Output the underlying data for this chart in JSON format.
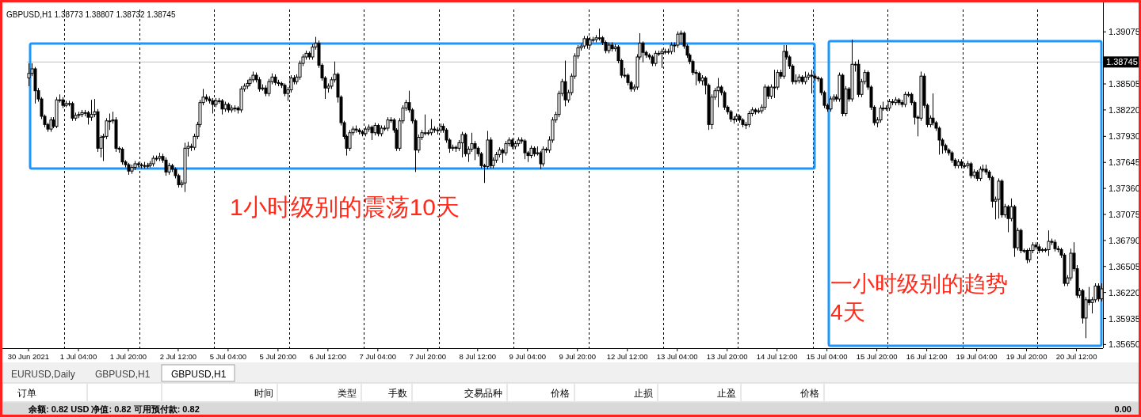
{
  "chart_data": {
    "type": "candlestick",
    "title": "GBPUSD,H1  1.38773 1.38807 1.38732 1.38745",
    "color": "#000000",
    "categories": [
      "30 Jun 2021",
      null,
      null,
      null,
      null,
      null,
      null,
      null,
      null,
      null,
      null,
      null,
      null,
      null,
      null,
      null,
      "1 Jul 04:00",
      null,
      null,
      null,
      null,
      null,
      null,
      null,
      null,
      null,
      null,
      null,
      null,
      null,
      null,
      null,
      "1 Jul 20:00",
      null,
      null,
      null,
      null,
      null,
      null,
      null,
      null,
      null,
      null,
      null,
      null,
      null,
      null,
      null,
      "2 Jul 12:00",
      null,
      null,
      null,
      null,
      null,
      null,
      null,
      null,
      null,
      null,
      null,
      null,
      null,
      null,
      null,
      "5 Jul 04:00",
      null,
      null,
      null,
      null,
      null,
      null,
      null,
      null,
      null,
      null,
      null,
      null,
      null,
      null,
      null,
      "5 Jul 20:00",
      null,
      null,
      null,
      null,
      null,
      null,
      null,
      null,
      null,
      null,
      null,
      null,
      null,
      null,
      null,
      "6 Jul 12:00",
      null,
      null,
      null,
      null,
      null,
      null,
      null,
      null,
      null,
      null,
      null,
      null,
      null,
      null,
      null,
      "7 Jul 04:00",
      null,
      null,
      null,
      null,
      null,
      null,
      null,
      null,
      null,
      null,
      null,
      null,
      null,
      null,
      null,
      "7 Jul 20:00",
      null,
      null,
      null,
      null,
      null,
      null,
      null,
      null,
      null,
      null,
      null,
      null,
      null,
      null,
      null,
      "8 Jul 12:00",
      null,
      null,
      null,
      null,
      null,
      null,
      null,
      null,
      null,
      null,
      null,
      null,
      null,
      null,
      null,
      "9 Jul 04:00",
      null,
      null,
      null,
      null,
      null,
      null,
      null,
      null,
      null,
      null,
      null,
      null,
      null,
      null,
      null,
      "9 Jul 20:00",
      null,
      null,
      null,
      null,
      null,
      null,
      null,
      null,
      null,
      null,
      null,
      null,
      null,
      null,
      null,
      "12 Jul 12:00",
      null,
      null,
      null,
      null,
      null,
      null,
      null,
      null,
      null,
      null,
      null,
      null,
      null,
      null,
      null,
      "13 Jul 04:00",
      null,
      null,
      null,
      null,
      null,
      null,
      null,
      null,
      null,
      null,
      null,
      null,
      null,
      null,
      null,
      "13 Jul 20:00",
      null,
      null,
      null,
      null,
      null,
      null,
      null,
      null,
      null,
      null,
      null,
      null,
      null,
      null,
      null,
      "14 Jul 12:00",
      null,
      null,
      null,
      null,
      null,
      null,
      null,
      null,
      null,
      null,
      null,
      null,
      null,
      null,
      null,
      "15 Jul 04:00",
      null,
      null,
      null,
      null,
      null,
      null,
      null,
      null,
      null,
      null,
      null,
      null,
      null,
      null,
      null,
      "15 Jul 20:00",
      null,
      null,
      null,
      null,
      null,
      null,
      null,
      null,
      null,
      null,
      null,
      null,
      null,
      null,
      null,
      "16 Jul 12:00",
      null,
      null,
      null,
      null,
      null,
      null,
      null,
      null,
      null,
      null,
      null,
      null,
      null,
      null,
      null,
      "19 Jul 04:00",
      null,
      null,
      null,
      null,
      null,
      null,
      null,
      null,
      null,
      null,
      null,
      null,
      null,
      null,
      null,
      "19 Jul 20:00",
      null,
      null,
      null,
      null,
      null,
      null,
      null,
      null,
      null,
      null,
      null,
      null,
      null,
      null,
      null,
      "20 Jul 12:00",
      null,
      null,
      null,
      null,
      null,
      null,
      null,
      null
    ],
    "ohlc": [
      [
        1.3857,
        1.3873,
        1.3848,
        1.3862
      ],
      [
        1.3862,
        1.3873,
        1.3859,
        1.3867
      ],
      [
        1.3867,
        1.3869,
        1.3829,
        1.3843
      ],
      [
        1.3843,
        1.3846,
        1.3831,
        1.3834
      ],
      [
        1.3834,
        1.3836,
        1.3812,
        1.3815
      ],
      [
        1.3815,
        1.3817,
        1.3803,
        1.3806
      ],
      [
        1.3806,
        1.3808,
        1.3798,
        1.3801
      ],
      [
        1.3801,
        1.3814,
        1.3798,
        1.3811
      ],
      [
        1.3811,
        1.3814,
        1.3802,
        1.3804
      ],
      [
        1.3804,
        1.3836,
        1.3802,
        1.3833
      ],
      [
        1.3833,
        1.3839,
        1.383,
        1.3833
      ],
      [
        1.3833,
        1.3836,
        1.3824,
        1.3827
      ],
      [
        1.3827,
        1.3832,
        1.3825,
        1.3829
      ],
      [
        1.3829,
        1.3832,
        1.3826,
        1.3829
      ],
      [
        1.3829,
        1.3831,
        1.381,
        1.3813
      ],
      [
        1.3813,
        1.3819,
        1.381,
        1.3816
      ],
      [
        1.3816,
        1.382,
        1.3813,
        1.3817
      ],
      [
        1.3817,
        1.3822,
        1.3814,
        1.3819
      ],
      [
        1.3819,
        1.3822,
        1.3815,
        1.3819
      ],
      [
        1.3819,
        1.3821,
        1.3806,
        1.3814
      ],
      [
        1.3814,
        1.3833,
        1.381,
        1.3817
      ],
      [
        1.3817,
        1.3834,
        1.3814,
        1.382
      ],
      [
        1.382,
        1.3823,
        1.3776,
        1.378
      ],
      [
        1.378,
        1.3794,
        1.377,
        1.3792
      ],
      [
        1.3792,
        1.3796,
        1.3766,
        1.3793
      ],
      [
        1.3793,
        1.3813,
        1.379,
        1.381
      ],
      [
        1.381,
        1.3818,
        1.38,
        1.381
      ],
      [
        1.381,
        1.382,
        1.3807,
        1.3811
      ],
      [
        1.3811,
        1.3814,
        1.3776,
        1.378
      ],
      [
        1.378,
        1.3782,
        1.3775,
        1.3779
      ],
      [
        1.3779,
        1.3781,
        1.3762,
        1.3765
      ],
      [
        1.3765,
        1.3767,
        1.3759,
        1.3762
      ],
      [
        1.3762,
        1.3764,
        1.3751,
        1.3755
      ],
      [
        1.3755,
        1.3762,
        1.3752,
        1.3759
      ],
      [
        1.3759,
        1.3766,
        1.3756,
        1.3763
      ],
      [
        1.3763,
        1.3765,
        1.3759,
        1.3762
      ],
      [
        1.3762,
        1.3764,
        1.3758,
        1.3761
      ],
      [
        1.3761,
        1.3765,
        1.3758,
        1.3761
      ],
      [
        1.3761,
        1.3764,
        1.3758,
        1.3761
      ],
      [
        1.3761,
        1.3766,
        1.3759,
        1.3763
      ],
      [
        1.3763,
        1.3772,
        1.376,
        1.3769
      ],
      [
        1.3769,
        1.3772,
        1.3766,
        1.3769
      ],
      [
        1.3769,
        1.3775,
        1.3766,
        1.3771
      ],
      [
        1.3771,
        1.3774,
        1.3764,
        1.3767
      ],
      [
        1.3767,
        1.377,
        1.375,
        1.3754
      ],
      [
        1.3754,
        1.3764,
        1.3751,
        1.3761
      ],
      [
        1.3761,
        1.3763,
        1.3754,
        1.3757
      ],
      [
        1.3757,
        1.3759,
        1.3747,
        1.375
      ],
      [
        1.375,
        1.3752,
        1.3737,
        1.374
      ],
      [
        1.374,
        1.3745,
        1.3737,
        1.3742
      ],
      [
        1.3742,
        1.3786,
        1.3732,
        1.378
      ],
      [
        1.378,
        1.3787,
        1.3771,
        1.3782
      ],
      [
        1.3782,
        1.3785,
        1.3777,
        1.3781
      ],
      [
        1.3781,
        1.3796,
        1.3778,
        1.3793
      ],
      [
        1.3793,
        1.3809,
        1.379,
        1.3806
      ],
      [
        1.3806,
        1.3833,
        1.3803,
        1.383
      ],
      [
        1.383,
        1.3845,
        1.3827,
        1.3836
      ],
      [
        1.3836,
        1.3839,
        1.3831,
        1.3834
      ],
      [
        1.3834,
        1.3837,
        1.3829,
        1.3832
      ],
      [
        1.3832,
        1.3835,
        1.3818,
        1.3828
      ],
      [
        1.3828,
        1.3835,
        1.3825,
        1.3832
      ],
      [
        1.3832,
        1.3835,
        1.3829,
        1.3832
      ],
      [
        1.3832,
        1.3834,
        1.3817,
        1.3823
      ],
      [
        1.3823,
        1.3831,
        1.382,
        1.3828
      ],
      [
        1.3828,
        1.383,
        1.3819,
        1.3822
      ],
      [
        1.3822,
        1.3827,
        1.3819,
        1.3824
      ],
      [
        1.3824,
        1.3827,
        1.382,
        1.3824
      ],
      [
        1.3824,
        1.3826,
        1.3818,
        1.3822
      ],
      [
        1.3822,
        1.3848,
        1.3819,
        1.3845
      ],
      [
        1.3845,
        1.3851,
        1.3842,
        1.3848
      ],
      [
        1.3848,
        1.3855,
        1.3845,
        1.3851
      ],
      [
        1.3851,
        1.3858,
        1.3848,
        1.3855
      ],
      [
        1.3855,
        1.3864,
        1.3852,
        1.386
      ],
      [
        1.386,
        1.3863,
        1.3852,
        1.3855
      ],
      [
        1.3855,
        1.3858,
        1.3842,
        1.3845
      ],
      [
        1.3845,
        1.385,
        1.3843,
        1.3846
      ],
      [
        1.3846,
        1.3849,
        1.3837,
        1.384
      ],
      [
        1.384,
        1.3856,
        1.3837,
        1.3853
      ],
      [
        1.3853,
        1.3862,
        1.385,
        1.3858
      ],
      [
        1.3858,
        1.3861,
        1.3849,
        1.3852
      ],
      [
        1.3852,
        1.3855,
        1.3848,
        1.3851
      ],
      [
        1.3851,
        1.3853,
        1.3846,
        1.3849
      ],
      [
        1.3849,
        1.3851,
        1.3837,
        1.384
      ],
      [
        1.384,
        1.3847,
        1.3832,
        1.3844
      ],
      [
        1.3844,
        1.386,
        1.3841,
        1.3857
      ],
      [
        1.3857,
        1.386,
        1.385,
        1.3853
      ],
      [
        1.3853,
        1.3861,
        1.385,
        1.3858
      ],
      [
        1.3858,
        1.3876,
        1.3855,
        1.3873
      ],
      [
        1.3873,
        1.3883,
        1.387,
        1.388
      ],
      [
        1.388,
        1.3887,
        1.3877,
        1.3884
      ],
      [
        1.3884,
        1.3886,
        1.3877,
        1.388
      ],
      [
        1.388,
        1.3894,
        1.3877,
        1.3891
      ],
      [
        1.3891,
        1.3902,
        1.3888,
        1.3895
      ],
      [
        1.3895,
        1.3898,
        1.3868,
        1.3871
      ],
      [
        1.3871,
        1.3873,
        1.3854,
        1.3857
      ],
      [
        1.3857,
        1.3859,
        1.3834,
        1.3846
      ],
      [
        1.3846,
        1.3851,
        1.3841,
        1.3848
      ],
      [
        1.3848,
        1.3858,
        1.3845,
        1.3855
      ],
      [
        1.3855,
        1.3875,
        1.3852,
        1.3861
      ],
      [
        1.3861,
        1.3863,
        1.383,
        1.3836
      ],
      [
        1.3836,
        1.3838,
        1.3805,
        1.3808
      ],
      [
        1.3808,
        1.381,
        1.379,
        1.3793
      ],
      [
        1.3793,
        1.3795,
        1.3772,
        1.378
      ],
      [
        1.378,
        1.38,
        1.3777,
        1.3797
      ],
      [
        1.3797,
        1.3804,
        1.3794,
        1.3801
      ],
      [
        1.3801,
        1.3805,
        1.3797,
        1.38
      ],
      [
        1.38,
        1.3802,
        1.3795,
        1.3798
      ],
      [
        1.3798,
        1.38,
        1.3793,
        1.3796
      ],
      [
        1.3796,
        1.3804,
        1.3793,
        1.3801
      ],
      [
        1.3801,
        1.3806,
        1.3798,
        1.3803
      ],
      [
        1.3803,
        1.3805,
        1.3789,
        1.3797
      ],
      [
        1.3797,
        1.3808,
        1.3794,
        1.3805
      ],
      [
        1.3805,
        1.3807,
        1.3793,
        1.3796
      ],
      [
        1.3796,
        1.3805,
        1.3793,
        1.3802
      ],
      [
        1.3802,
        1.3805,
        1.3799,
        1.3802
      ],
      [
        1.3802,
        1.3814,
        1.3799,
        1.3811
      ],
      [
        1.3811,
        1.3814,
        1.3808,
        1.3811
      ],
      [
        1.3811,
        1.3813,
        1.3797,
        1.38
      ],
      [
        1.38,
        1.3802,
        1.3777,
        1.378
      ],
      [
        1.378,
        1.3813,
        1.3777,
        1.381
      ],
      [
        1.381,
        1.3827,
        1.3807,
        1.3824
      ],
      [
        1.3824,
        1.3833,
        1.3821,
        1.383
      ],
      [
        1.383,
        1.3843,
        1.3819,
        1.3822
      ],
      [
        1.3822,
        1.3824,
        1.3807,
        1.381
      ],
      [
        1.381,
        1.3812,
        1.3754,
        1.3778
      ],
      [
        1.3778,
        1.3795,
        1.3775,
        1.3792
      ],
      [
        1.3792,
        1.38,
        1.3789,
        1.3797
      ],
      [
        1.3797,
        1.3817,
        1.3794,
        1.3797
      ],
      [
        1.3797,
        1.38,
        1.3794,
        1.3797
      ],
      [
        1.3797,
        1.3812,
        1.3794,
        1.3801
      ],
      [
        1.3801,
        1.3804,
        1.3797,
        1.38
      ],
      [
        1.38,
        1.3803,
        1.3795,
        1.38
      ],
      [
        1.38,
        1.3807,
        1.3797,
        1.3804
      ],
      [
        1.3804,
        1.3807,
        1.3797,
        1.38
      ],
      [
        1.38,
        1.3802,
        1.3786,
        1.3789
      ],
      [
        1.3789,
        1.3791,
        1.3775,
        1.378
      ],
      [
        1.378,
        1.3784,
        1.3777,
        1.3781
      ],
      [
        1.3781,
        1.3783,
        1.3776,
        1.378
      ],
      [
        1.378,
        1.3789,
        1.3777,
        1.3786
      ],
      [
        1.3786,
        1.3798,
        1.377,
        1.3795
      ],
      [
        1.3795,
        1.3797,
        1.3771,
        1.3774
      ],
      [
        1.3774,
        1.3782,
        1.3765,
        1.3779
      ],
      [
        1.3779,
        1.3797,
        1.3776,
        1.3785
      ],
      [
        1.3785,
        1.3788,
        1.3767,
        1.378
      ],
      [
        1.378,
        1.3782,
        1.3771,
        1.3774
      ],
      [
        1.3774,
        1.3776,
        1.3758,
        1.3761
      ],
      [
        1.3761,
        1.3763,
        1.3742,
        1.376
      ],
      [
        1.376,
        1.3799,
        1.3757,
        1.3789
      ],
      [
        1.3789,
        1.3792,
        1.3758,
        1.3761
      ],
      [
        1.3761,
        1.377,
        1.3758,
        1.3767
      ],
      [
        1.3767,
        1.3776,
        1.3764,
        1.3773
      ],
      [
        1.3773,
        1.3781,
        1.377,
        1.3778
      ],
      [
        1.3778,
        1.378,
        1.3764,
        1.3775
      ],
      [
        1.3775,
        1.3788,
        1.3772,
        1.3785
      ],
      [
        1.3785,
        1.3792,
        1.3782,
        1.3789
      ],
      [
        1.3789,
        1.3791,
        1.3779,
        1.3782
      ],
      [
        1.3782,
        1.3788,
        1.3779,
        1.3785
      ],
      [
        1.3785,
        1.3792,
        1.3782,
        1.3789
      ],
      [
        1.3789,
        1.3792,
        1.3785,
        1.3788
      ],
      [
        1.3788,
        1.379,
        1.3768,
        1.3775
      ],
      [
        1.3775,
        1.3777,
        1.3765,
        1.3772
      ],
      [
        1.3772,
        1.3783,
        1.3769,
        1.378
      ],
      [
        1.378,
        1.3782,
        1.3771,
        1.3774
      ],
      [
        1.3774,
        1.3782,
        1.3772,
        1.3775
      ],
      [
        1.3775,
        1.3777,
        1.3757,
        1.3763
      ],
      [
        1.3763,
        1.3782,
        1.376,
        1.3779
      ],
      [
        1.3779,
        1.3781,
        1.3775,
        1.3778
      ],
      [
        1.3778,
        1.3793,
        1.3775,
        1.3789
      ],
      [
        1.3789,
        1.3814,
        1.3786,
        1.3811
      ],
      [
        1.3811,
        1.382,
        1.3808,
        1.3817
      ],
      [
        1.3817,
        1.3843,
        1.3814,
        1.384
      ],
      [
        1.384,
        1.3856,
        1.3837,
        1.3853
      ],
      [
        1.3853,
        1.3876,
        1.3826,
        1.3833
      ],
      [
        1.3833,
        1.3844,
        1.383,
        1.3841
      ],
      [
        1.3841,
        1.3862,
        1.3838,
        1.3859
      ],
      [
        1.3859,
        1.3884,
        1.3856,
        1.3881
      ],
      [
        1.3881,
        1.3893,
        1.3878,
        1.389
      ],
      [
        1.389,
        1.3895,
        1.3887,
        1.3892
      ],
      [
        1.3892,
        1.3903,
        1.3889,
        1.39
      ],
      [
        1.39,
        1.3903,
        1.3889,
        1.3893
      ],
      [
        1.3893,
        1.3902,
        1.389,
        1.3899
      ],
      [
        1.3899,
        1.3902,
        1.3896,
        1.3899
      ],
      [
        1.3899,
        1.3904,
        1.3896,
        1.3901
      ],
      [
        1.3901,
        1.3911,
        1.3898,
        1.3901
      ],
      [
        1.3901,
        1.3903,
        1.3893,
        1.3896
      ],
      [
        1.3896,
        1.3898,
        1.3884,
        1.3887
      ],
      [
        1.3887,
        1.3896,
        1.3884,
        1.3893
      ],
      [
        1.3893,
        1.3896,
        1.3886,
        1.3889
      ],
      [
        1.3889,
        1.3894,
        1.3886,
        1.3891
      ],
      [
        1.3891,
        1.3893,
        1.3873,
        1.3876
      ],
      [
        1.3876,
        1.3878,
        1.3857,
        1.386
      ],
      [
        1.386,
        1.3868,
        1.3857,
        1.386
      ],
      [
        1.386,
        1.3862,
        1.3849,
        1.3852
      ],
      [
        1.3852,
        1.3854,
        1.3842,
        1.3845
      ],
      [
        1.3845,
        1.385,
        1.3842,
        1.3847
      ],
      [
        1.3847,
        1.3883,
        1.3844,
        1.388
      ],
      [
        1.388,
        1.3906,
        1.3877,
        1.3895
      ],
      [
        1.3895,
        1.3897,
        1.3874,
        1.3885
      ],
      [
        1.3885,
        1.3887,
        1.3879,
        1.3882
      ],
      [
        1.3882,
        1.3884,
        1.3877,
        1.388
      ],
      [
        1.388,
        1.3882,
        1.387,
        1.3873
      ],
      [
        1.3873,
        1.3887,
        1.387,
        1.3884
      ],
      [
        1.3884,
        1.3887,
        1.3881,
        1.3884
      ],
      [
        1.3884,
        1.3889,
        1.3868,
        1.3886
      ],
      [
        1.3886,
        1.3889,
        1.3883,
        1.3886
      ],
      [
        1.3886,
        1.3889,
        1.3883,
        1.3886
      ],
      [
        1.3886,
        1.3896,
        1.3883,
        1.3893
      ],
      [
        1.3893,
        1.3896,
        1.3885,
        1.3893
      ],
      [
        1.3893,
        1.3908,
        1.389,
        1.3905
      ],
      [
        1.3905,
        1.3909,
        1.3893,
        1.3906
      ],
      [
        1.3906,
        1.3908,
        1.3889,
        1.3892
      ],
      [
        1.3892,
        1.3894,
        1.3879,
        1.3882
      ],
      [
        1.3882,
        1.3884,
        1.3872,
        1.3875
      ],
      [
        1.3875,
        1.3877,
        1.386,
        1.3863
      ],
      [
        1.3863,
        1.3866,
        1.3849,
        1.3862
      ],
      [
        1.3862,
        1.3864,
        1.3851,
        1.3854
      ],
      [
        1.3854,
        1.386,
        1.3849,
        1.3857
      ],
      [
        1.3857,
        1.3859,
        1.3839,
        1.3849
      ],
      [
        1.3849,
        1.3851,
        1.38,
        1.3806
      ],
      [
        1.3806,
        1.3839,
        1.3801,
        1.3836
      ],
      [
        1.3836,
        1.3846,
        1.3833,
        1.3843
      ],
      [
        1.3843,
        1.3857,
        1.3825,
        1.3847
      ],
      [
        1.3847,
        1.3849,
        1.3838,
        1.3841
      ],
      [
        1.3841,
        1.3843,
        1.3822,
        1.3825
      ],
      [
        1.3825,
        1.3827,
        1.3817,
        1.382
      ],
      [
        1.382,
        1.3822,
        1.3809,
        1.3812
      ],
      [
        1.3812,
        1.3815,
        1.3807,
        1.3812
      ],
      [
        1.3812,
        1.3818,
        1.3809,
        1.3815
      ],
      [
        1.3815,
        1.3817,
        1.3808,
        1.3811
      ],
      [
        1.3811,
        1.3813,
        1.3803,
        1.3806
      ],
      [
        1.3806,
        1.3809,
        1.3801,
        1.3806
      ],
      [
        1.3806,
        1.3821,
        1.3803,
        1.3818
      ],
      [
        1.3818,
        1.3825,
        1.3815,
        1.3822
      ],
      [
        1.3822,
        1.3824,
        1.3817,
        1.382
      ],
      [
        1.382,
        1.3824,
        1.3818,
        1.3821
      ],
      [
        1.3821,
        1.3828,
        1.3818,
        1.3825
      ],
      [
        1.3825,
        1.385,
        1.3822,
        1.3847
      ],
      [
        1.3847,
        1.3849,
        1.3834,
        1.3837
      ],
      [
        1.3837,
        1.385,
        1.3834,
        1.3847
      ],
      [
        1.3847,
        1.3866,
        1.3835,
        1.3847
      ],
      [
        1.3847,
        1.3866,
        1.3844,
        1.3863
      ],
      [
        1.3863,
        1.3866,
        1.3856,
        1.3859
      ],
      [
        1.3859,
        1.3893,
        1.3856,
        1.3886
      ],
      [
        1.3886,
        1.3893,
        1.3877,
        1.388
      ],
      [
        1.388,
        1.3882,
        1.3867,
        1.387
      ],
      [
        1.387,
        1.3872,
        1.385,
        1.3853
      ],
      [
        1.3853,
        1.3861,
        1.385,
        1.3854
      ],
      [
        1.3854,
        1.3861,
        1.3851,
        1.3858
      ],
      [
        1.3858,
        1.386,
        1.385,
        1.3853
      ],
      [
        1.3853,
        1.3864,
        1.385,
        1.3858
      ],
      [
        1.3858,
        1.3863,
        1.3855,
        1.386
      ],
      [
        1.386,
        1.3866,
        1.384,
        1.3859
      ],
      [
        1.3859,
        1.3862,
        1.3854,
        1.3857
      ],
      [
        1.3857,
        1.3859,
        1.3853,
        1.3856
      ],
      [
        1.3856,
        1.3858,
        1.3838,
        1.3841
      ],
      [
        1.3841,
        1.3843,
        1.3824,
        1.3827
      ],
      [
        1.3827,
        1.3829,
        1.382,
        1.3823
      ],
      [
        1.3823,
        1.3837,
        1.382,
        1.3834
      ],
      [
        1.3834,
        1.3839,
        1.3831,
        1.3836
      ],
      [
        1.3836,
        1.3839,
        1.3831,
        1.3834
      ],
      [
        1.3834,
        1.3863,
        1.3831,
        1.386
      ],
      [
        1.386,
        1.3862,
        1.3815,
        1.3818
      ],
      [
        1.3818,
        1.3848,
        1.3815,
        1.3845
      ],
      [
        1.3845,
        1.3847,
        1.3831,
        1.3834
      ],
      [
        1.3834,
        1.3899,
        1.3831,
        1.3872
      ],
      [
        1.3872,
        1.3875,
        1.3864,
        1.3872
      ],
      [
        1.3872,
        1.3877,
        1.3836,
        1.3839
      ],
      [
        1.3839,
        1.3856,
        1.3836,
        1.3853
      ],
      [
        1.3853,
        1.3866,
        1.385,
        1.3863
      ],
      [
        1.3863,
        1.3865,
        1.3844,
        1.3847
      ],
      [
        1.3847,
        1.3849,
        1.3822,
        1.3825
      ],
      [
        1.3825,
        1.3827,
        1.3805,
        1.3808
      ],
      [
        1.3808,
        1.3814,
        1.3803,
        1.3811
      ],
      [
        1.3811,
        1.3827,
        1.3808,
        1.3824
      ],
      [
        1.3824,
        1.3831,
        1.3821,
        1.3824
      ],
      [
        1.3824,
        1.3827,
        1.3821,
        1.3824
      ],
      [
        1.3824,
        1.3834,
        1.3821,
        1.3831
      ],
      [
        1.3831,
        1.3834,
        1.3827,
        1.383
      ],
      [
        1.383,
        1.3836,
        1.3827,
        1.3833
      ],
      [
        1.3833,
        1.3835,
        1.3827,
        1.383
      ],
      [
        1.383,
        1.3833,
        1.3825,
        1.3828
      ],
      [
        1.3828,
        1.3842,
        1.3825,
        1.3839
      ],
      [
        1.3839,
        1.3842,
        1.3836,
        1.3839
      ],
      [
        1.3839,
        1.3841,
        1.3827,
        1.383
      ],
      [
        1.383,
        1.3832,
        1.3806,
        1.3814
      ],
      [
        1.3814,
        1.3816,
        1.3793,
        1.3813
      ],
      [
        1.3813,
        1.3864,
        1.381,
        1.3859
      ],
      [
        1.3859,
        1.3862,
        1.3824,
        1.3827
      ],
      [
        1.3827,
        1.3829,
        1.3803,
        1.3806
      ],
      [
        1.3806,
        1.3816,
        1.3803,
        1.3813
      ],
      [
        1.3813,
        1.384,
        1.3805,
        1.3808
      ],
      [
        1.3808,
        1.381,
        1.3799,
        1.3802
      ],
      [
        1.3802,
        1.3804,
        1.3773,
        1.3789
      ],
      [
        1.3789,
        1.3791,
        1.3774,
        1.3783
      ],
      [
        1.3783,
        1.3785,
        1.3775,
        1.3778
      ],
      [
        1.3778,
        1.378,
        1.3772,
        1.3775
      ],
      [
        1.3775,
        1.3777,
        1.3764,
        1.3767
      ],
      [
        1.3767,
        1.3769,
        1.3758,
        1.3761
      ],
      [
        1.3761,
        1.3768,
        1.3758,
        1.3765
      ],
      [
        1.3765,
        1.3768,
        1.3758,
        1.3761
      ],
      [
        1.3761,
        1.3764,
        1.3758,
        1.3761
      ],
      [
        1.3761,
        1.3766,
        1.3758,
        1.3763
      ],
      [
        1.3763,
        1.3765,
        1.3747,
        1.375
      ],
      [
        1.375,
        1.3757,
        1.3747,
        1.3754
      ],
      [
        1.3754,
        1.3756,
        1.3744,
        1.3747
      ],
      [
        1.3747,
        1.376,
        1.3744,
        1.3757
      ],
      [
        1.3757,
        1.3762,
        1.3754,
        1.3757
      ],
      [
        1.3757,
        1.3762,
        1.3751,
        1.3754
      ],
      [
        1.3754,
        1.3756,
        1.3745,
        1.3748
      ],
      [
        1.3748,
        1.375,
        1.3715,
        1.3722
      ],
      [
        1.3722,
        1.3727,
        1.3702,
        1.3724
      ],
      [
        1.3724,
        1.3747,
        1.3703,
        1.3744
      ],
      [
        1.3744,
        1.3746,
        1.3704,
        1.3707
      ],
      [
        1.3707,
        1.3719,
        1.3704,
        1.3716
      ],
      [
        1.3716,
        1.3718,
        1.3688,
        1.3703
      ],
      [
        1.3703,
        1.3725,
        1.37,
        1.3716
      ],
      [
        1.3716,
        1.3718,
        1.3661,
        1.3671
      ],
      [
        1.3671,
        1.3693,
        1.3668,
        1.369
      ],
      [
        1.369,
        1.3692,
        1.3665,
        1.3668
      ],
      [
        1.3668,
        1.367,
        1.3665,
        1.3668
      ],
      [
        1.3668,
        1.367,
        1.3654,
        1.3658
      ],
      [
        1.3658,
        1.3671,
        1.3655,
        1.3668
      ],
      [
        1.3668,
        1.3677,
        1.3665,
        1.3674
      ],
      [
        1.3674,
        1.3677,
        1.3669,
        1.3672
      ],
      [
        1.3672,
        1.3675,
        1.3665,
        1.3668
      ],
      [
        1.3668,
        1.3671,
        1.3666,
        1.3669
      ],
      [
        1.3669,
        1.3671,
        1.3666,
        1.3669
      ],
      [
        1.3669,
        1.369,
        1.3662,
        1.3678
      ],
      [
        1.3678,
        1.3681,
        1.3674,
        1.3677
      ],
      [
        1.3677,
        1.368,
        1.3667,
        1.367
      ],
      [
        1.367,
        1.3673,
        1.3666,
        1.3669
      ],
      [
        1.3669,
        1.3671,
        1.366,
        1.3663
      ],
      [
        1.3663,
        1.3665,
        1.3629,
        1.3632
      ],
      [
        1.3632,
        1.3641,
        1.3629,
        1.3638
      ],
      [
        1.3638,
        1.367,
        1.3635,
        1.3665
      ],
      [
        1.3665,
        1.3677,
        1.3645,
        1.3648
      ],
      [
        1.3648,
        1.3652,
        1.3616,
        1.3619
      ],
      [
        1.3619,
        1.3627,
        1.3616,
        1.3624
      ],
      [
        1.3624,
        1.3626,
        1.3588,
        1.3594
      ],
      [
        1.3594,
        1.3617,
        1.3572,
        1.3614
      ],
      [
        1.3614,
        1.3628,
        1.3608,
        1.3611
      ],
      [
        1.3611,
        1.3617,
        1.3599,
        1.3614
      ],
      [
        1.3614,
        1.3632,
        1.3611,
        1.3629
      ],
      [
        1.3629,
        1.3632,
        1.3612,
        1.3615
      ],
      [
        1.3615,
        1.3632,
        1.3612,
        1.3626
      ]
    ],
    "ylim": [
      1.3561,
      1.3932
    ],
    "yticks": [
      1.39075,
      {
        "value": 1.3879,
        "label": null
      },
      1.38505,
      {
        "value": 1.3822,
        "label": "1.38220"
      },
      {
        "value": 1.3793,
        "label": "1.37930"
      },
      1.37645,
      {
        "value": 1.3736,
        "label": "1.37360"
      },
      1.37075,
      {
        "value": 1.3679,
        "label": "1.36790"
      },
      1.36505,
      {
        "value": 1.3622,
        "label": "1.36220"
      },
      1.35935,
      {
        "value": 1.3565,
        "label": "1.35650"
      }
    ],
    "ref_lines": [
      {
        "axis": "y",
        "value": 1.38745,
        "label": "1.38745",
        "color": "#c0c0c0"
      }
    ],
    "annotations": [
      "1小时级别的震荡10天",
      "一小时级别的趋势4天",
      "EURUSD,Daily",
      "GBPUSD,H1",
      "GBPUSD,H1",
      "订单",
      "时间",
      "类型",
      "手数",
      "交易品种",
      "价格",
      "止损",
      "止盈",
      "价格",
      "余额: 0.82 USD  净值: 0.82  可用预付款: 0.82",
      "0.00"
    ]
  }
}
